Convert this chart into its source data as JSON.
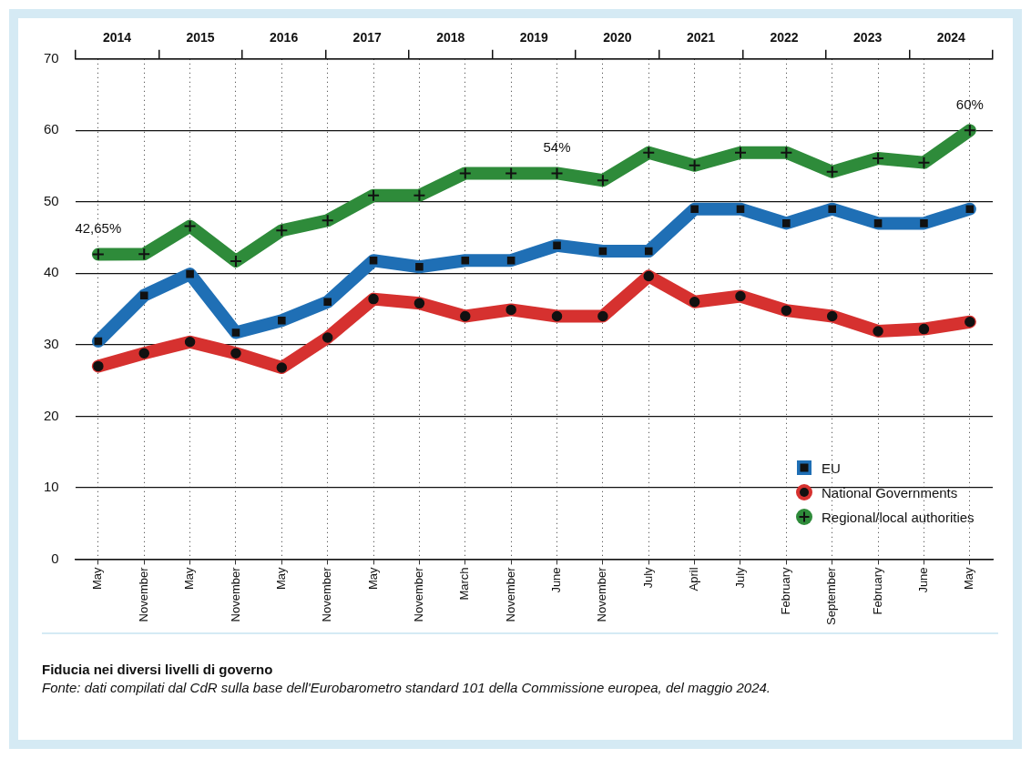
{
  "chart_data": {
    "type": "line",
    "title": "Fiducia nei diversi livelli di governo",
    "annotations": [
      "Fonte: dati compilati dal CdR sulla base dell'Eurobarometro standard 101 della Commissione europea, del maggio 2024."
    ],
    "categories": [
      "May",
      "November",
      "May",
      "November",
      "May",
      "November",
      "May",
      "November",
      "March",
      "November",
      "June",
      "November",
      "July",
      "April",
      "July",
      "February",
      "September",
      "February",
      "June",
      "May"
    ],
    "series": [
      {
        "name": "EU",
        "color": "#1f6fb5",
        "marker": "square",
        "values": [
          30.5,
          36.9,
          39.9,
          31.7,
          33.4,
          36.0,
          41.8,
          40.9,
          41.8,
          41.8,
          43.9,
          43.1,
          43.1,
          49.0,
          49.0,
          47.0,
          49.0,
          47.0,
          47.0,
          49.0
        ]
      },
      {
        "name": "National Governments",
        "color": "#d6312f",
        "marker": "circle",
        "values": [
          27.0,
          28.8,
          30.4,
          28.8,
          26.8,
          31.0,
          36.4,
          35.8,
          34.0,
          34.9,
          34.0,
          34.0,
          39.6,
          36.0,
          36.8,
          34.8,
          34.0,
          31.9,
          32.2,
          33.2
        ]
      },
      {
        "name": "Regional/local authorities",
        "color": "#2e8b3a",
        "marker": "cross",
        "values": [
          42.65,
          42.7,
          46.6,
          41.7,
          46.0,
          47.4,
          50.9,
          50.9,
          54.0,
          54.0,
          54,
          53.0,
          56.9,
          55.1,
          56.9,
          56.9,
          54.2,
          56.1,
          55.5,
          60
        ],
        "value_labels": [
          "42,65%",
          null,
          null,
          null,
          null,
          null,
          null,
          null,
          null,
          null,
          "54%",
          null,
          null,
          null,
          null,
          null,
          null,
          null,
          null,
          "60%"
        ]
      }
    ],
    "ylim": [
      0,
      70
    ],
    "yticks": [
      0,
      10,
      20,
      30,
      40,
      50,
      60,
      70
    ],
    "x2lim": [
      2013.5,
      2024.5
    ],
    "x2ticks": [
      {
        "value": 2013.5,
        "label": null
      },
      2014,
      {
        "value": 2014.5,
        "label": null
      },
      2015,
      {
        "value": 2015.5,
        "label": null
      },
      2016,
      {
        "value": 2016.5,
        "label": null
      },
      2017,
      {
        "value": 2017.5,
        "label": null
      },
      2018,
      {
        "value": 2018.5,
        "label": null
      },
      2019,
      {
        "value": 2019.5,
        "label": null
      },
      2020,
      {
        "value": 2020.5,
        "label": null
      },
      2021,
      {
        "value": 2021.5,
        "label": null
      },
      2022,
      {
        "value": 2022.5,
        "label": null
      },
      2023,
      {
        "value": 2023.5,
        "label": null
      },
      2024,
      {
        "value": 2024.5,
        "label": null
      }
    ],
    "grid": true,
    "legend": "bottom right"
  }
}
